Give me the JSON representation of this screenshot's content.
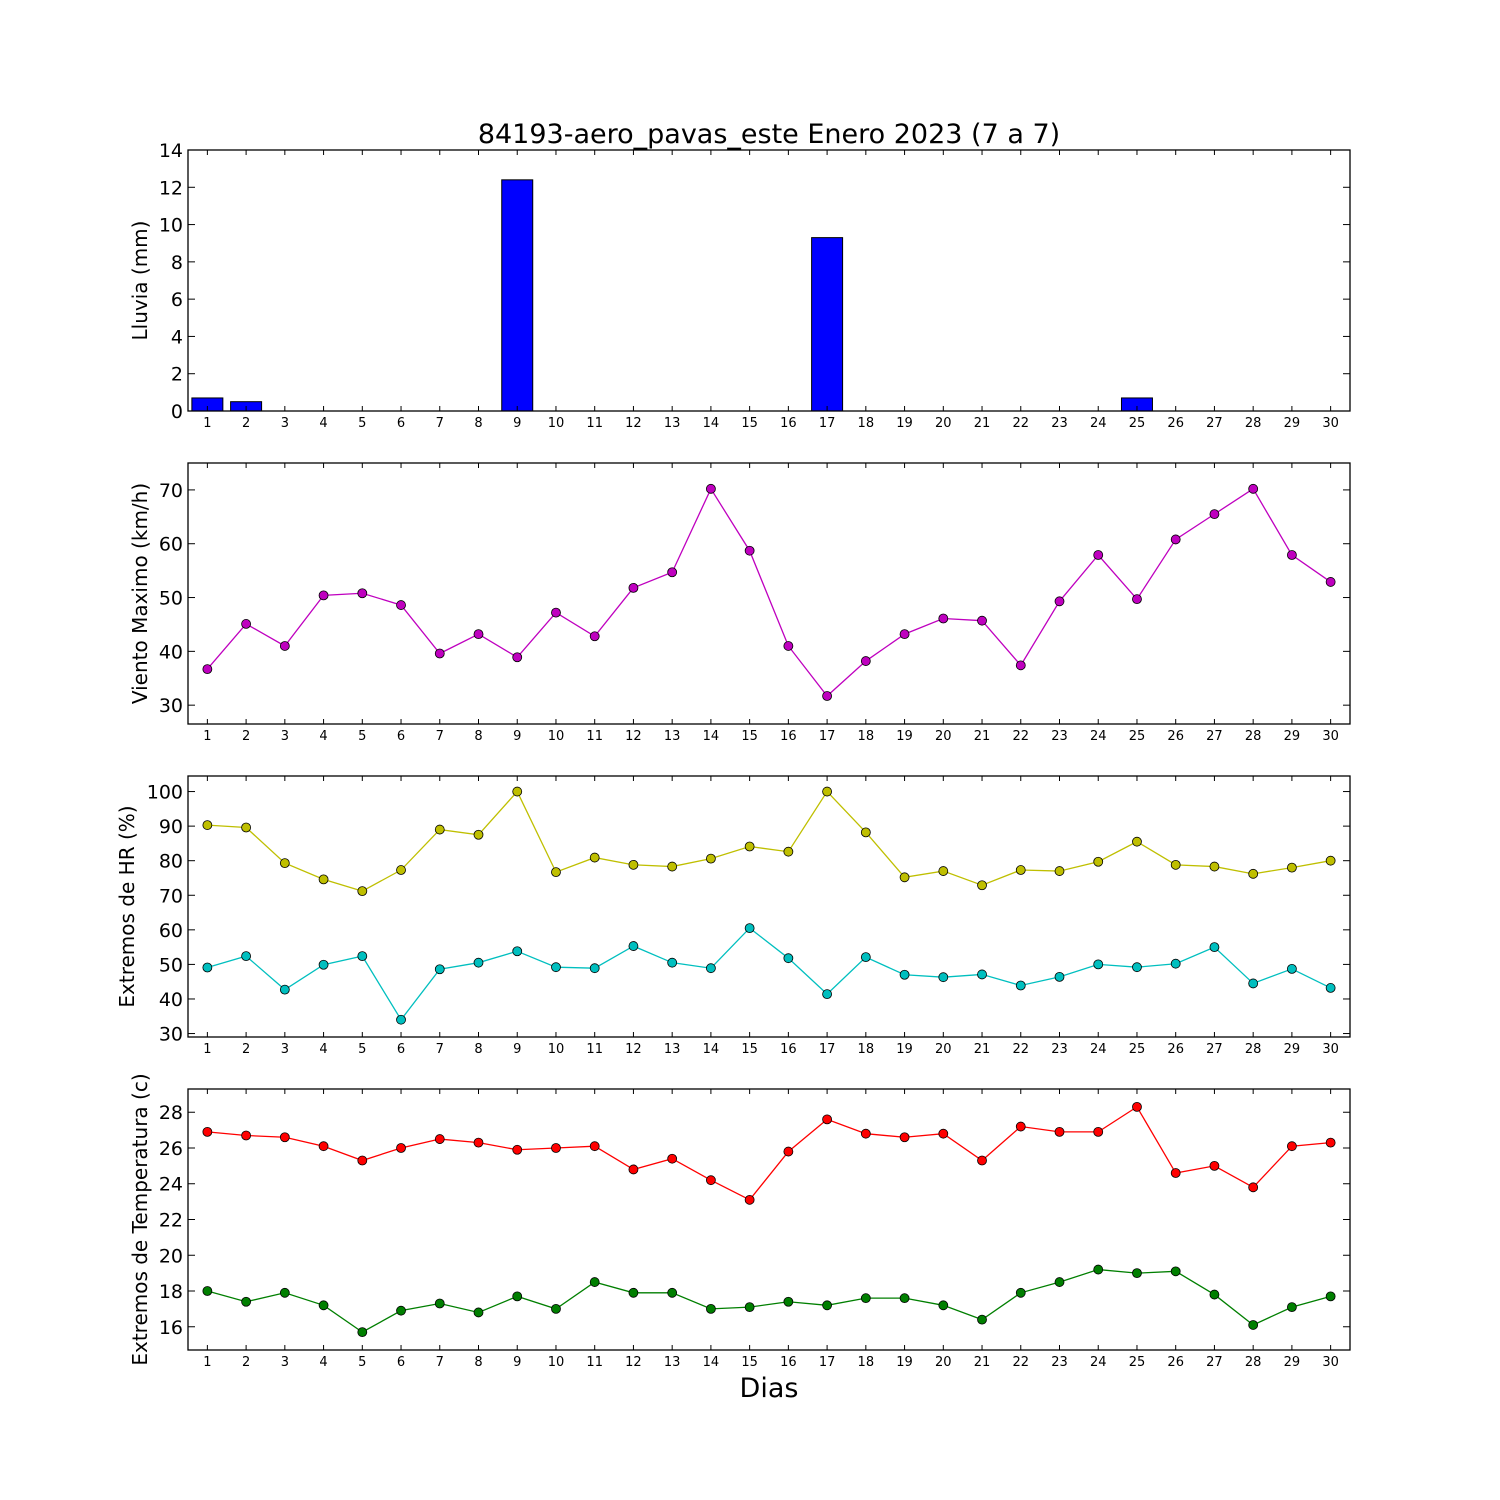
{
  "title": "84193-aero_pavas_este Enero 2023  (7 a 7)",
  "xlabel": "Dias",
  "chart_data": [
    {
      "type": "bar",
      "ylabel": "Lluvia (mm)",
      "categories": [
        "1",
        "2",
        "3",
        "4",
        "5",
        "6",
        "7",
        "8",
        "9",
        "10",
        "11",
        "12",
        "13",
        "14",
        "15",
        "16",
        "17",
        "18",
        "19",
        "20",
        "21",
        "22",
        "23",
        "24",
        "25",
        "26",
        "27",
        "28",
        "29",
        "30"
      ],
      "ylim": [
        0,
        14
      ],
      "yticks": [
        0,
        2,
        4,
        6,
        8,
        10,
        12,
        14
      ],
      "grid": false,
      "series": [
        {
          "color": "#0000ff",
          "values": [
            0.7,
            0.5,
            0,
            0,
            0,
            0,
            0,
            0,
            12.4,
            0,
            0,
            0,
            0,
            0,
            0,
            0,
            9.3,
            0,
            0,
            0,
            0,
            0,
            0,
            0,
            0.7,
            0,
            0,
            0,
            0,
            0
          ]
        }
      ]
    },
    {
      "type": "line",
      "ylabel": "Viento Maximo (km/h)",
      "categories": [
        "1",
        "2",
        "3",
        "4",
        "5",
        "6",
        "7",
        "8",
        "9",
        "10",
        "11",
        "12",
        "13",
        "14",
        "15",
        "16",
        "17",
        "18",
        "19",
        "20",
        "21",
        "22",
        "23",
        "24",
        "25",
        "26",
        "27",
        "28",
        "29",
        "30"
      ],
      "ylim": [
        26.5,
        75
      ],
      "yticks": [
        30,
        40,
        50,
        60,
        70
      ],
      "grid": false,
      "series": [
        {
          "color": "#bf00bf",
          "values": [
            36.7,
            45.1,
            41.0,
            50.4,
            50.8,
            48.6,
            39.6,
            43.2,
            38.9,
            47.2,
            42.8,
            51.8,
            54.7,
            70.2,
            58.7,
            41.0,
            31.7,
            38.2,
            43.2,
            46.1,
            45.7,
            37.4,
            49.3,
            57.9,
            49.7,
            60.8,
            65.5,
            70.2,
            57.9,
            52.9
          ]
        }
      ]
    },
    {
      "type": "line",
      "ylabel": "Extremos de HR (%)",
      "categories": [
        "1",
        "2",
        "3",
        "4",
        "5",
        "6",
        "7",
        "8",
        "9",
        "10",
        "11",
        "12",
        "13",
        "14",
        "15",
        "16",
        "17",
        "18",
        "19",
        "20",
        "21",
        "22",
        "23",
        "24",
        "25",
        "26",
        "27",
        "28",
        "29",
        "30"
      ],
      "ylim": [
        29,
        104.5
      ],
      "yticks": [
        30,
        40,
        50,
        60,
        70,
        80,
        90,
        100
      ],
      "grid": false,
      "series": [
        {
          "color": "#bfbf00",
          "values": [
            90.3,
            89.6,
            79.3,
            74.6,
            71.2,
            77.3,
            89.0,
            87.5,
            100.0,
            76.7,
            80.9,
            78.8,
            78.3,
            80.6,
            84.1,
            82.6,
            100.0,
            88.2,
            75.2,
            77.0,
            72.9,
            77.3,
            77.0,
            79.7,
            85.5,
            78.8,
            78.3,
            76.2,
            78.0,
            80.0
          ]
        },
        {
          "color": "#00bfbf",
          "values": [
            49.1,
            52.4,
            42.7,
            49.9,
            52.4,
            34.0,
            48.6,
            50.5,
            53.8,
            49.2,
            48.9,
            55.3,
            50.5,
            48.9,
            60.5,
            51.8,
            41.4,
            52.1,
            47.0,
            46.3,
            47.1,
            43.9,
            46.4,
            50.0,
            49.2,
            50.2,
            55.0,
            44.5,
            48.7,
            43.2
          ]
        }
      ]
    },
    {
      "type": "line",
      "ylabel": "Extremos de Temperatura (c)",
      "categories": [
        "1",
        "2",
        "3",
        "4",
        "5",
        "6",
        "7",
        "8",
        "9",
        "10",
        "11",
        "12",
        "13",
        "14",
        "15",
        "16",
        "17",
        "18",
        "19",
        "20",
        "21",
        "22",
        "23",
        "24",
        "25",
        "26",
        "27",
        "28",
        "29",
        "30"
      ],
      "ylim": [
        14.7,
        29.3
      ],
      "yticks": [
        16,
        18,
        20,
        22,
        24,
        26,
        28
      ],
      "grid": false,
      "series": [
        {
          "color": "#ff0000",
          "values": [
            26.9,
            26.7,
            26.6,
            26.1,
            25.3,
            26.0,
            26.5,
            26.3,
            25.9,
            26.0,
            26.1,
            24.8,
            25.4,
            24.2,
            23.1,
            25.8,
            27.6,
            26.8,
            26.6,
            26.8,
            25.3,
            27.2,
            26.9,
            26.9,
            28.3,
            24.6,
            25.0,
            23.8,
            26.1,
            26.3
          ]
        },
        {
          "color": "#007f00",
          "values": [
            18.0,
            17.4,
            17.9,
            17.2,
            15.7,
            16.9,
            17.3,
            16.8,
            17.7,
            17.0,
            18.5,
            17.9,
            17.9,
            17.0,
            17.1,
            17.4,
            17.2,
            17.6,
            17.6,
            17.2,
            16.4,
            17.9,
            18.5,
            19.2,
            19.0,
            19.1,
            17.8,
            16.1,
            17.1,
            17.7
          ]
        }
      ]
    }
  ]
}
